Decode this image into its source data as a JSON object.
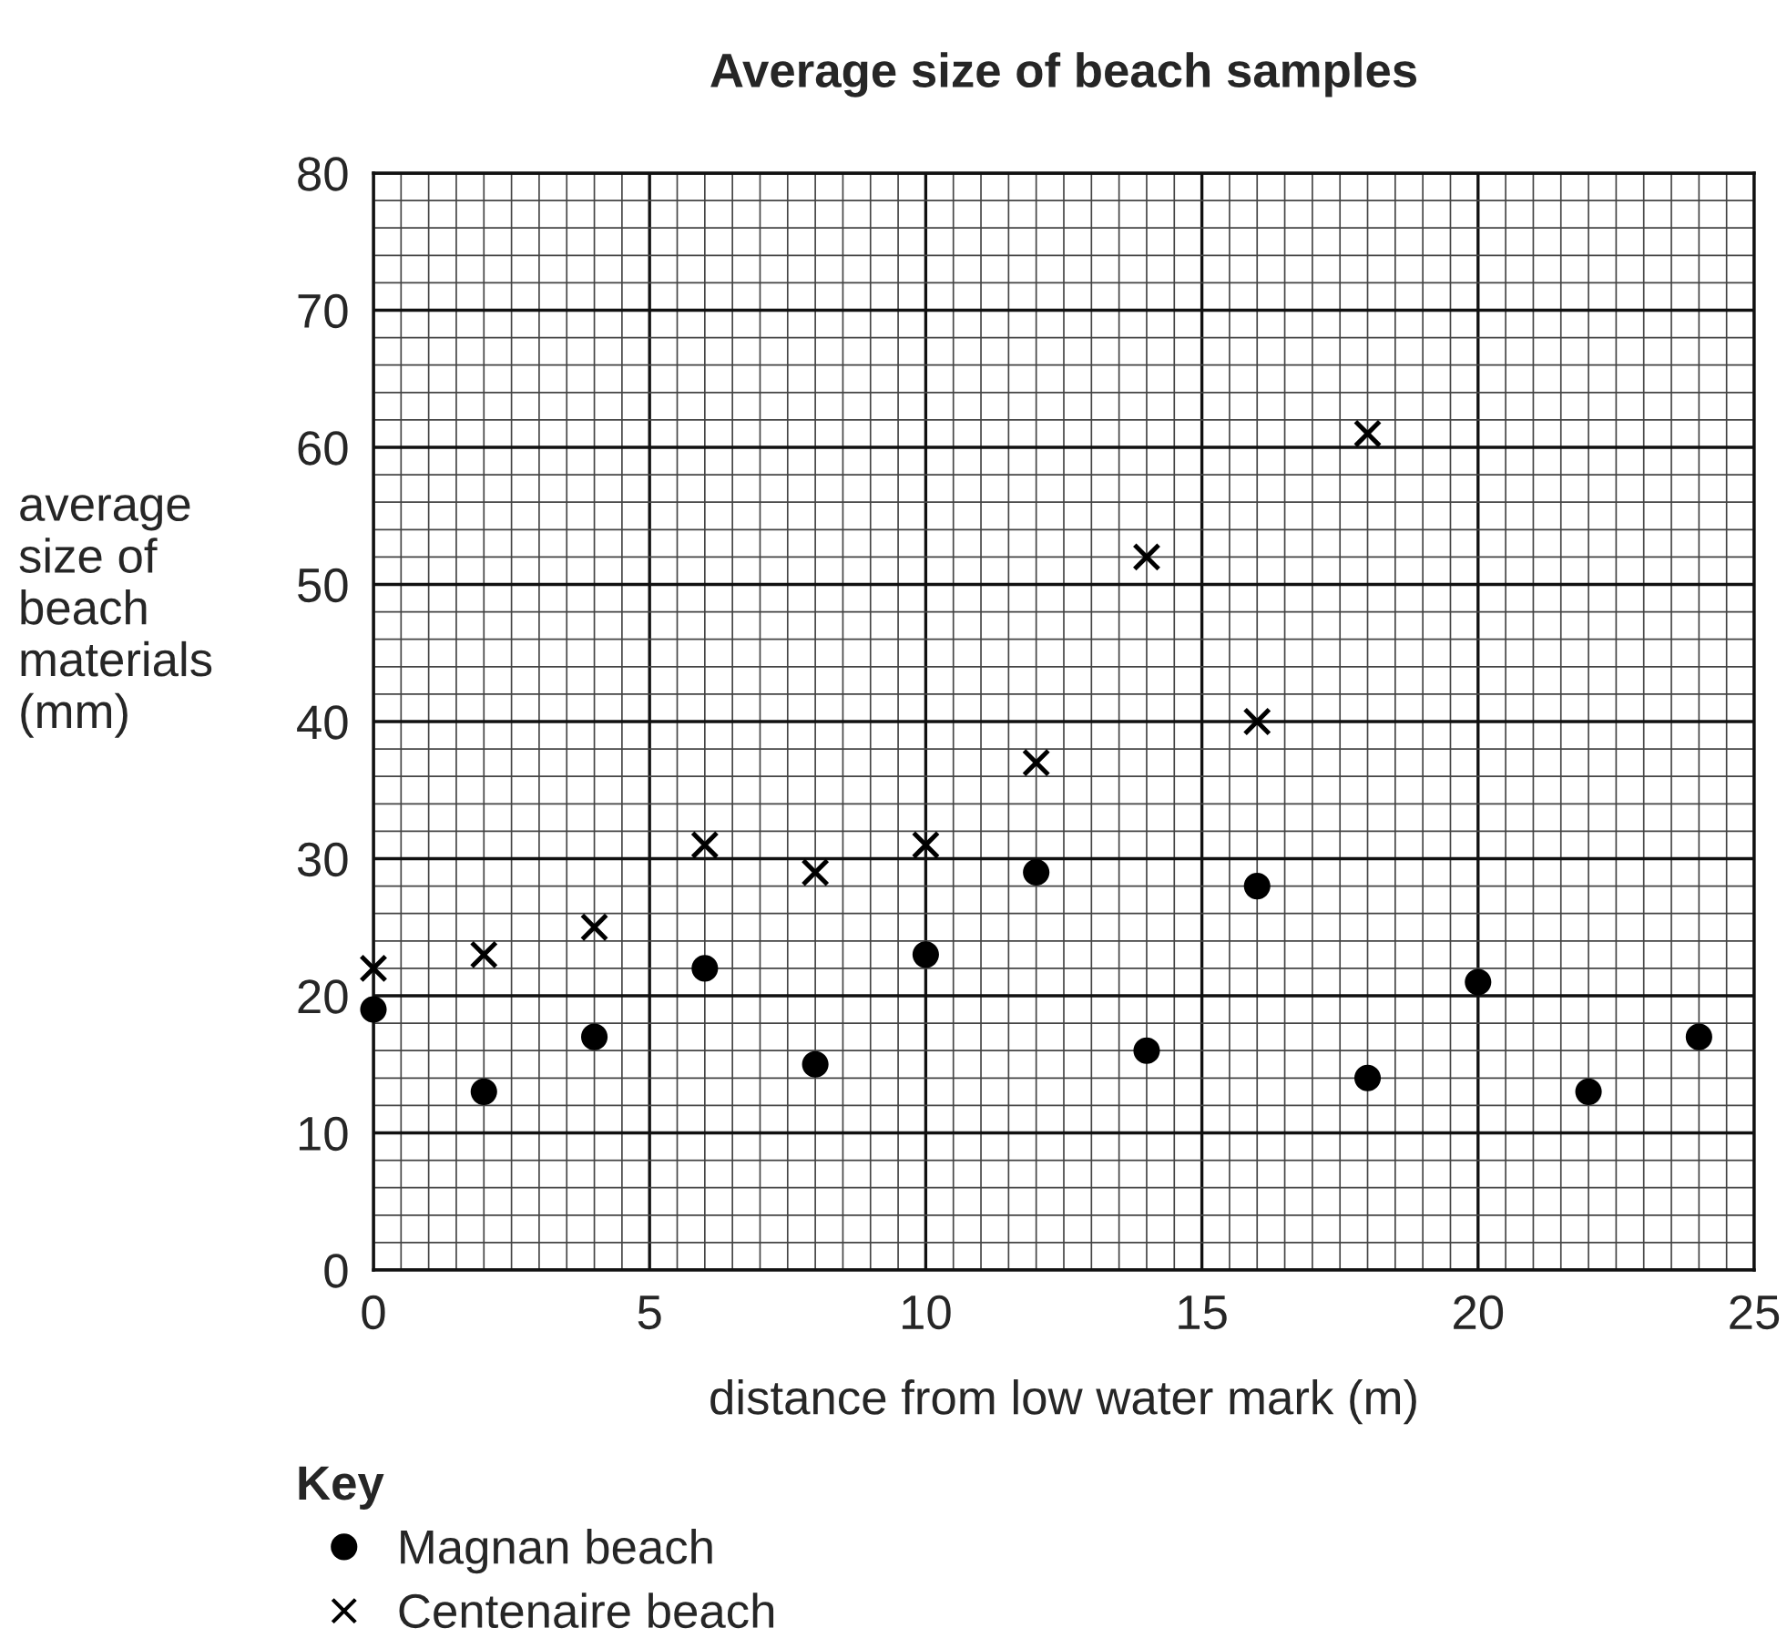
{
  "chart_data": {
    "type": "scatter",
    "title": "Average size of beach samples",
    "xlabel": "distance from low water mark (m)",
    "ylabel": "average\nsize of\nbeach\nmaterials\n(mm)",
    "legend_title": "Key",
    "legend": "bottom",
    "grid": true,
    "xlim": [
      0,
      25
    ],
    "xticks": [
      0,
      5,
      10,
      15,
      20,
      25
    ],
    "ylim": [
      0,
      80
    ],
    "yticks": [
      0,
      10,
      20,
      30,
      40,
      50,
      60,
      70,
      80
    ],
    "series": [
      {
        "name": "Magnan beach",
        "color": "#000000",
        "marker": "circle",
        "x": [
          0,
          2,
          4,
          6,
          8,
          10,
          12,
          14,
          16,
          18,
          20,
          22,
          24
        ],
        "values": [
          19,
          13,
          17,
          22,
          15,
          23,
          29,
          16,
          28,
          14,
          21,
          13,
          17
        ]
      },
      {
        "name": "Centenaire beach",
        "color": "#000000",
        "marker": "cross",
        "x": [
          0,
          2,
          4,
          6,
          8,
          10,
          12,
          14,
          16,
          18
        ],
        "values": [
          22,
          23,
          25,
          31,
          29,
          31,
          37,
          52,
          40,
          61
        ]
      }
    ]
  }
}
